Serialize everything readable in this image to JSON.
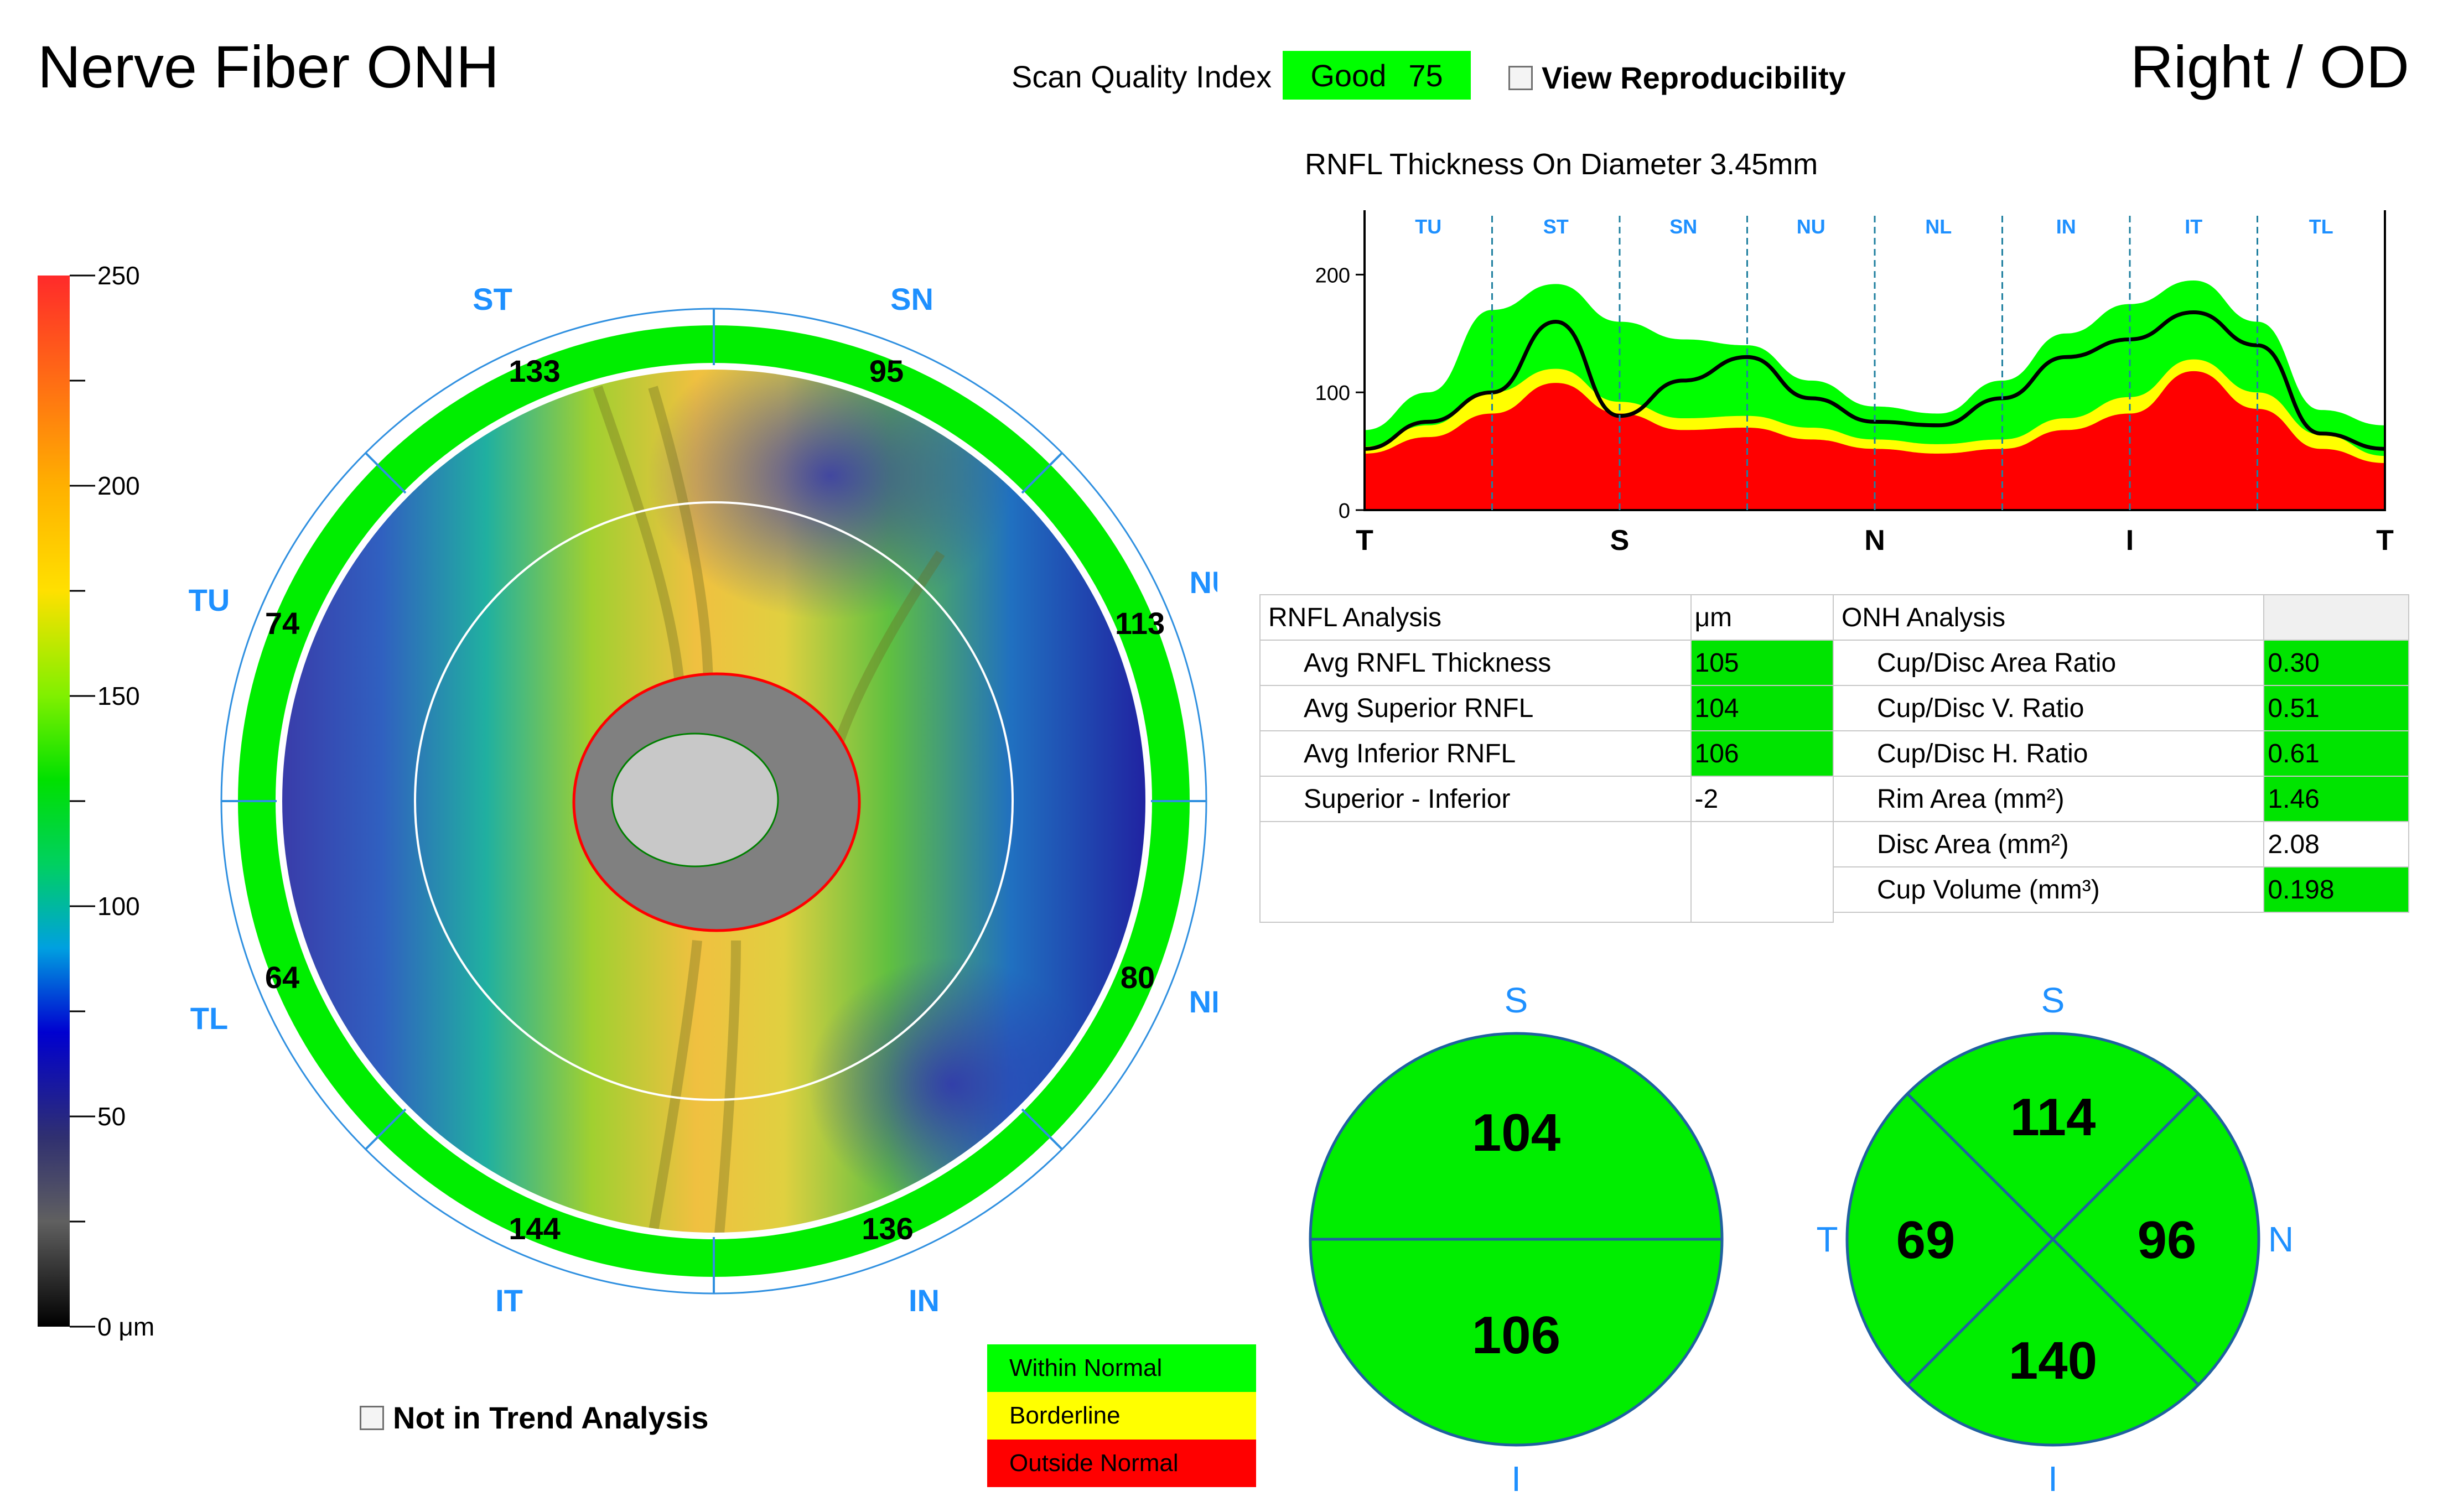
{
  "header": {
    "title": "Nerve Fiber ONH",
    "eye": "Right / OD",
    "scan_quality_label": "Scan Quality Index",
    "scan_quality_rating": "Good",
    "scan_quality_value": "75",
    "view_reproducibility": "View Reproducibility"
  },
  "colors": {
    "within_normal": "#00ff00",
    "borderline": "#ffff00",
    "outside_normal": "#ff0000",
    "label_blue": "#1e90ff"
  },
  "colorbar": {
    "ticks": [
      "250",
      "200",
      "150",
      "100",
      "50",
      "0 μm"
    ]
  },
  "thickness_map": {
    "sector_labels": [
      "ST",
      "SN",
      "NU",
      "NL",
      "IN",
      "IT",
      "TL",
      "TU"
    ],
    "sector_values": [
      "133",
      "95",
      "113",
      "80",
      "136",
      "144",
      "64",
      "74"
    ]
  },
  "not_in_trend": "Not in Trend Analysis",
  "tsnit_chart": {
    "title": "RNFL Thickness On Diameter 3.45mm",
    "chart_data": {
      "type": "area",
      "title": "RNFL Thickness On Diameter 3.45mm",
      "segments": [
        "TU",
        "ST",
        "SN",
        "NU",
        "NL",
        "IN",
        "IT",
        "TL"
      ],
      "x_tick_labels": [
        "T",
        "S",
        "N",
        "I",
        "T"
      ],
      "y_ticks": [
        "200",
        "100",
        "0"
      ],
      "ylim": [
        0,
        250
      ],
      "x": [
        0,
        0.5,
        1,
        1.5,
        2,
        2.5,
        3,
        3.5,
        4,
        4.5,
        5,
        5.5,
        6,
        6.5,
        7,
        7.5,
        8
      ],
      "series": [
        {
          "name": "Outside Normal limit",
          "values": [
            48,
            62,
            82,
            108,
            82,
            68,
            70,
            60,
            52,
            48,
            52,
            68,
            82,
            118,
            86,
            52,
            40
          ]
        },
        {
          "name": "Borderline limit",
          "values": [
            54,
            72,
            100,
            120,
            92,
            78,
            80,
            70,
            60,
            56,
            60,
            78,
            96,
            128,
            100,
            64,
            46
          ]
        },
        {
          "name": "Within Normal limit",
          "values": [
            68,
            100,
            170,
            192,
            160,
            145,
            140,
            110,
            88,
            82,
            110,
            150,
            175,
            195,
            160,
            85,
            72
          ]
        },
        {
          "name": "Patient RNFL",
          "values": [
            52,
            75,
            100,
            160,
            80,
            110,
            130,
            95,
            75,
            72,
            95,
            130,
            145,
            168,
            140,
            65,
            52
          ]
        }
      ]
    }
  },
  "rnfl_table": {
    "header": [
      "RNFL Analysis",
      "μm"
    ],
    "rows": [
      {
        "label": "Avg RNFL Thickness",
        "value": "105",
        "color": "#00e400"
      },
      {
        "label": "Avg Superior RNFL",
        "value": "104",
        "color": "#00e400"
      },
      {
        "label": "Avg Inferior RNFL",
        "value": "106",
        "color": "#00e400"
      },
      {
        "label": "Superior - Inferior",
        "value": "-2",
        "color": ""
      }
    ]
  },
  "onh_table": {
    "header": [
      "ONH Analysis",
      ""
    ],
    "rows": [
      {
        "label": "Cup/Disc Area Ratio",
        "value": "0.30",
        "color": "#00e400"
      },
      {
        "label": "Cup/Disc V. Ratio",
        "value": "0.51",
        "color": "#00e400"
      },
      {
        "label": "Cup/Disc H. Ratio",
        "value": "0.61",
        "color": "#00e400"
      },
      {
        "label": "Rim Area (mm²)",
        "value": "1.46",
        "color": "#00e400"
      },
      {
        "label": "Disc Area (mm²)",
        "value": "2.08",
        "color": ""
      },
      {
        "label": "Cup Volume (mm³)",
        "value": "0.198",
        "color": "#00e400"
      }
    ]
  },
  "hemispheres": {
    "top_label": "S",
    "bottom_label": "I",
    "superior": "104",
    "inferior": "106"
  },
  "quadrants": {
    "top_label": "S",
    "bottom_label": "I",
    "left_label": "T",
    "right_label": "N",
    "superior": "114",
    "temporal": "69",
    "nasal": "96",
    "inferior": "140"
  },
  "legend": {
    "within_normal": "Within Normal",
    "borderline": "Borderline",
    "outside_normal": "Outside Normal"
  }
}
